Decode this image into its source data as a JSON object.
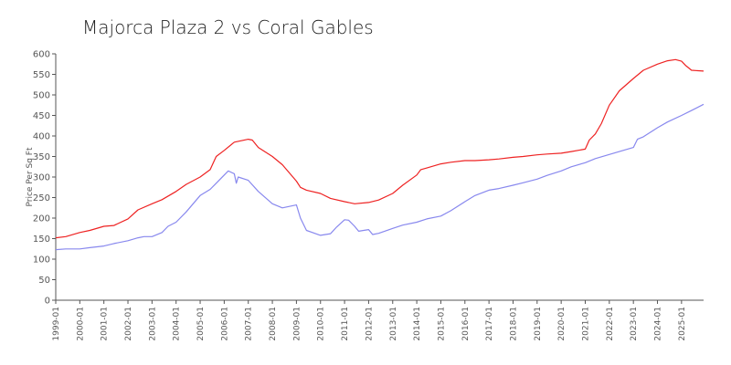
{
  "chart_data": {
    "type": "line",
    "title": "Majorca Plaza 2 vs Coral Gables",
    "ylabel": "Price Per Sq Ft",
    "xlabel": "",
    "ylim": [
      0,
      600
    ],
    "xlim": [
      "1999-01",
      "2025-12"
    ],
    "y_ticks": [
      "0",
      "50",
      "100",
      "150",
      "200",
      "250",
      "300",
      "350",
      "400",
      "450",
      "500",
      "550",
      "600"
    ],
    "x_ticks": [
      "1999-01",
      "2000-01",
      "2001-01",
      "2002-01",
      "2003-01",
      "2004-01",
      "2005-01",
      "2006-01",
      "2007-01",
      "2008-01",
      "2009-01",
      "2010-01",
      "2011-01",
      "2012-01",
      "2013-01",
      "2014-01",
      "2015-01",
      "2016-01",
      "2017-01",
      "2018-01",
      "2019-01",
      "2020-01",
      "2021-01",
      "2022-01",
      "2023-01",
      "2024-01",
      "2025-01"
    ],
    "grid": false,
    "legend": "none",
    "series": [
      {
        "color": "#ee2222",
        "points": [
          [
            "1999-01",
            152
          ],
          [
            "1999-06",
            155
          ],
          [
            "2000-01",
            165
          ],
          [
            "2000-06",
            170
          ],
          [
            "2001-01",
            180
          ],
          [
            "2001-06",
            182
          ],
          [
            "2002-01",
            198
          ],
          [
            "2002-06",
            220
          ],
          [
            "2003-01",
            235
          ],
          [
            "2003-06",
            245
          ],
          [
            "2004-01",
            265
          ],
          [
            "2004-06",
            282
          ],
          [
            "2005-01",
            300
          ],
          [
            "2005-06",
            318
          ],
          [
            "2005-09",
            350
          ],
          [
            "2006-01",
            365
          ],
          [
            "2006-06",
            385
          ],
          [
            "2007-01",
            392
          ],
          [
            "2007-03",
            390
          ],
          [
            "2007-06",
            372
          ],
          [
            "2008-01",
            350
          ],
          [
            "2008-06",
            330
          ],
          [
            "2009-01",
            290
          ],
          [
            "2009-03",
            275
          ],
          [
            "2009-06",
            268
          ],
          [
            "2010-01",
            260
          ],
          [
            "2010-06",
            248
          ],
          [
            "2011-01",
            240
          ],
          [
            "2011-06",
            235
          ],
          [
            "2012-01",
            238
          ],
          [
            "2012-06",
            244
          ],
          [
            "2013-01",
            260
          ],
          [
            "2013-06",
            280
          ],
          [
            "2014-01",
            305
          ],
          [
            "2014-03",
            318
          ],
          [
            "2014-06",
            322
          ],
          [
            "2015-01",
            332
          ],
          [
            "2015-06",
            336
          ],
          [
            "2016-01",
            340
          ],
          [
            "2016-06",
            340
          ],
          [
            "2017-01",
            342
          ],
          [
            "2017-06",
            344
          ],
          [
            "2018-01",
            348
          ],
          [
            "2018-06",
            350
          ],
          [
            "2019-01",
            354
          ],
          [
            "2019-06",
            356
          ],
          [
            "2020-01",
            358
          ],
          [
            "2020-06",
            362
          ],
          [
            "2021-01",
            368
          ],
          [
            "2021-03",
            390
          ],
          [
            "2021-06",
            405
          ],
          [
            "2021-09",
            430
          ],
          [
            "2022-01",
            475
          ],
          [
            "2022-06",
            510
          ],
          [
            "2023-01",
            540
          ],
          [
            "2023-06",
            560
          ],
          [
            "2024-01",
            575
          ],
          [
            "2024-06",
            583
          ],
          [
            "2024-10",
            586
          ],
          [
            "2025-01",
            582
          ],
          [
            "2025-03",
            572
          ],
          [
            "2025-06",
            560
          ],
          [
            "2025-12",
            558
          ]
        ]
      },
      {
        "color": "#8888ee",
        "points": [
          [
            "1999-01",
            123
          ],
          [
            "1999-06",
            125
          ],
          [
            "2000-01",
            125
          ],
          [
            "2000-06",
            128
          ],
          [
            "2001-01",
            132
          ],
          [
            "2001-06",
            138
          ],
          [
            "2002-01",
            145
          ],
          [
            "2002-06",
            152
          ],
          [
            "2002-09",
            155
          ],
          [
            "2003-01",
            155
          ],
          [
            "2003-06",
            165
          ],
          [
            "2003-09",
            180
          ],
          [
            "2004-01",
            190
          ],
          [
            "2004-06",
            215
          ],
          [
            "2005-01",
            255
          ],
          [
            "2005-06",
            270
          ],
          [
            "2005-09",
            285
          ],
          [
            "2006-01",
            305
          ],
          [
            "2006-03",
            315
          ],
          [
            "2006-06",
            308
          ],
          [
            "2006-07",
            285
          ],
          [
            "2006-08",
            300
          ],
          [
            "2007-01",
            292
          ],
          [
            "2007-06",
            265
          ],
          [
            "2008-01",
            235
          ],
          [
            "2008-06",
            225
          ],
          [
            "2009-01",
            232
          ],
          [
            "2009-03",
            200
          ],
          [
            "2009-06",
            170
          ],
          [
            "2010-01",
            158
          ],
          [
            "2010-06",
            162
          ],
          [
            "2010-09",
            178
          ],
          [
            "2011-01",
            196
          ],
          [
            "2011-03",
            195
          ],
          [
            "2011-06",
            180
          ],
          [
            "2011-08",
            168
          ],
          [
            "2012-01",
            172
          ],
          [
            "2012-03",
            160
          ],
          [
            "2012-06",
            163
          ],
          [
            "2013-01",
            175
          ],
          [
            "2013-06",
            183
          ],
          [
            "2014-01",
            190
          ],
          [
            "2014-06",
            198
          ],
          [
            "2015-01",
            205
          ],
          [
            "2015-06",
            218
          ],
          [
            "2016-01",
            240
          ],
          [
            "2016-06",
            255
          ],
          [
            "2017-01",
            268
          ],
          [
            "2017-06",
            272
          ],
          [
            "2018-01",
            280
          ],
          [
            "2018-06",
            286
          ],
          [
            "2019-01",
            295
          ],
          [
            "2019-06",
            304
          ],
          [
            "2020-01",
            315
          ],
          [
            "2020-06",
            325
          ],
          [
            "2021-01",
            335
          ],
          [
            "2021-06",
            345
          ],
          [
            "2022-01",
            355
          ],
          [
            "2022-06",
            362
          ],
          [
            "2023-01",
            372
          ],
          [
            "2023-03",
            392
          ],
          [
            "2023-06",
            398
          ],
          [
            "2024-01",
            420
          ],
          [
            "2024-06",
            434
          ],
          [
            "2025-01",
            450
          ],
          [
            "2025-06",
            462
          ],
          [
            "2025-12",
            477
          ]
        ]
      }
    ]
  }
}
